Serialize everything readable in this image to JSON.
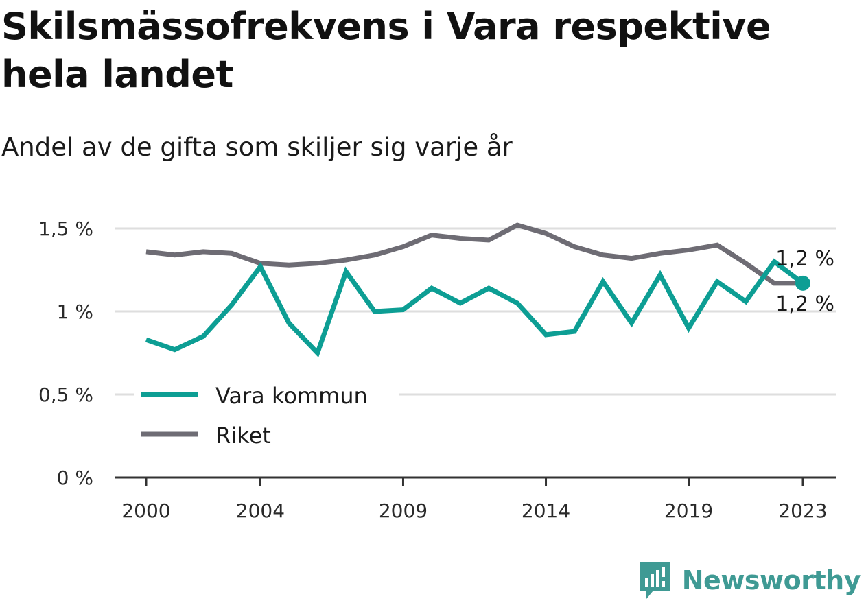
{
  "title": "Skilsmässofrekvens i Vara respektive hela landet",
  "subtitle": "Andel av de gifta som skiljer sig varje år",
  "brand": {
    "name": "Newsworthy",
    "icon": "newsworthy-logo-icon"
  },
  "colors": {
    "vara": "#0d9e94",
    "riket": "#6e6c74",
    "grid": "#dedede",
    "axis": "#333333",
    "brand": "#3f9a94"
  },
  "chart_data": {
    "type": "line",
    "x": [
      2000,
      2001,
      2002,
      2003,
      2004,
      2005,
      2006,
      2007,
      2008,
      2009,
      2010,
      2011,
      2012,
      2013,
      2014,
      2015,
      2016,
      2017,
      2018,
      2019,
      2020,
      2021,
      2022,
      2023
    ],
    "x_ticks": [
      2000,
      2004,
      2009,
      2014,
      2019,
      2023
    ],
    "x_tick_labels": [
      "2000",
      "2004",
      "2009",
      "2014",
      "2019",
      "2023"
    ],
    "ylim": [
      0,
      1.5
    ],
    "y_ticks": [
      0,
      0.5,
      1,
      1.5
    ],
    "y_tick_labels": [
      "0 %",
      "0,5 %",
      "1 %",
      "1,5 %"
    ],
    "grid": true,
    "legend_position": "lower-left",
    "series": [
      {
        "name": "Vara kommun",
        "color": "#0d9e94",
        "values": [
          0.83,
          0.77,
          0.85,
          1.04,
          1.27,
          0.93,
          0.75,
          1.24,
          1.0,
          1.01,
          1.14,
          1.05,
          1.14,
          1.05,
          0.86,
          0.88,
          1.18,
          0.93,
          1.22,
          0.9,
          1.18,
          1.06,
          1.3,
          1.17
        ],
        "end_label": "1,2 %"
      },
      {
        "name": "Riket",
        "color": "#6e6c74",
        "values": [
          1.36,
          1.34,
          1.36,
          1.35,
          1.29,
          1.28,
          1.29,
          1.31,
          1.34,
          1.39,
          1.46,
          1.44,
          1.43,
          1.52,
          1.47,
          1.39,
          1.34,
          1.32,
          1.35,
          1.37,
          1.4,
          1.29,
          1.17,
          1.17
        ],
        "end_label": "1,2 %"
      }
    ]
  }
}
